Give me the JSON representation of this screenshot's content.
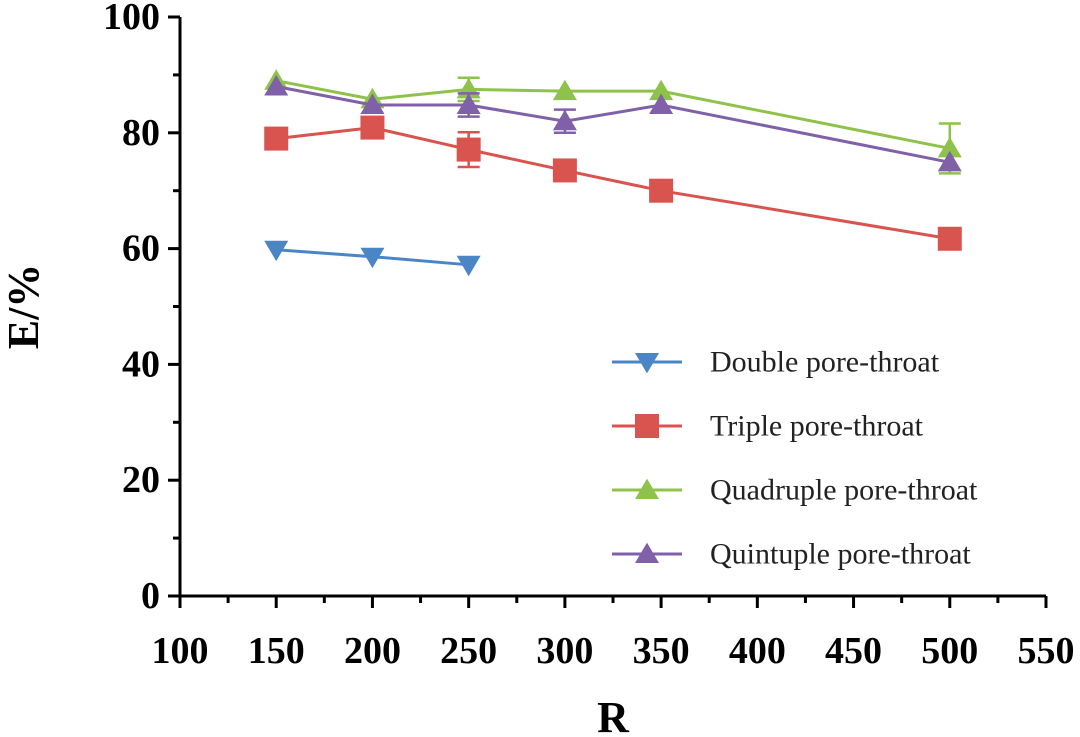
{
  "chart_data": {
    "type": "line",
    "xlabel": "R",
    "ylabel": "E/%",
    "xlim": [
      100,
      550
    ],
    "ylim": [
      0,
      100
    ],
    "xticks": [
      100,
      150,
      200,
      250,
      300,
      350,
      400,
      450,
      500,
      550
    ],
    "yticks": [
      0,
      20,
      40,
      60,
      80,
      100
    ],
    "legend_position": "lower-right",
    "series": [
      {
        "name": "Double pore-throat",
        "marker": "triangle-down",
        "color": "#4a86c5",
        "x": [
          150,
          200,
          250
        ],
        "y": [
          59.8,
          58.6,
          57.2
        ],
        "err": [
          0,
          0,
          0
        ]
      },
      {
        "name": "Triple pore-throat",
        "marker": "square",
        "color": "#d9534f",
        "x": [
          150,
          200,
          250,
          300,
          350,
          500
        ],
        "y": [
          79,
          80.9,
          77.1,
          73.5,
          70,
          61.7
        ],
        "err": [
          0,
          0,
          3,
          0,
          0,
          0
        ]
      },
      {
        "name": "Quadruple pore-throat",
        "marker": "triangle-up",
        "color": "#8fc24a",
        "x": [
          150,
          200,
          250,
          300,
          350,
          500
        ],
        "y": [
          89,
          85.8,
          87.5,
          87.2,
          87.2,
          77.3
        ],
        "err": [
          0,
          0,
          2,
          0,
          0,
          4.3
        ]
      },
      {
        "name": "Quintuple pore-throat",
        "marker": "triangle-up",
        "color": "#8060a8",
        "x": [
          150,
          200,
          250,
          300,
          350,
          500
        ],
        "y": [
          88,
          84.8,
          84.8,
          82,
          84.8,
          74.9
        ],
        "err": [
          0,
          0,
          2,
          2,
          0,
          0
        ]
      }
    ]
  }
}
